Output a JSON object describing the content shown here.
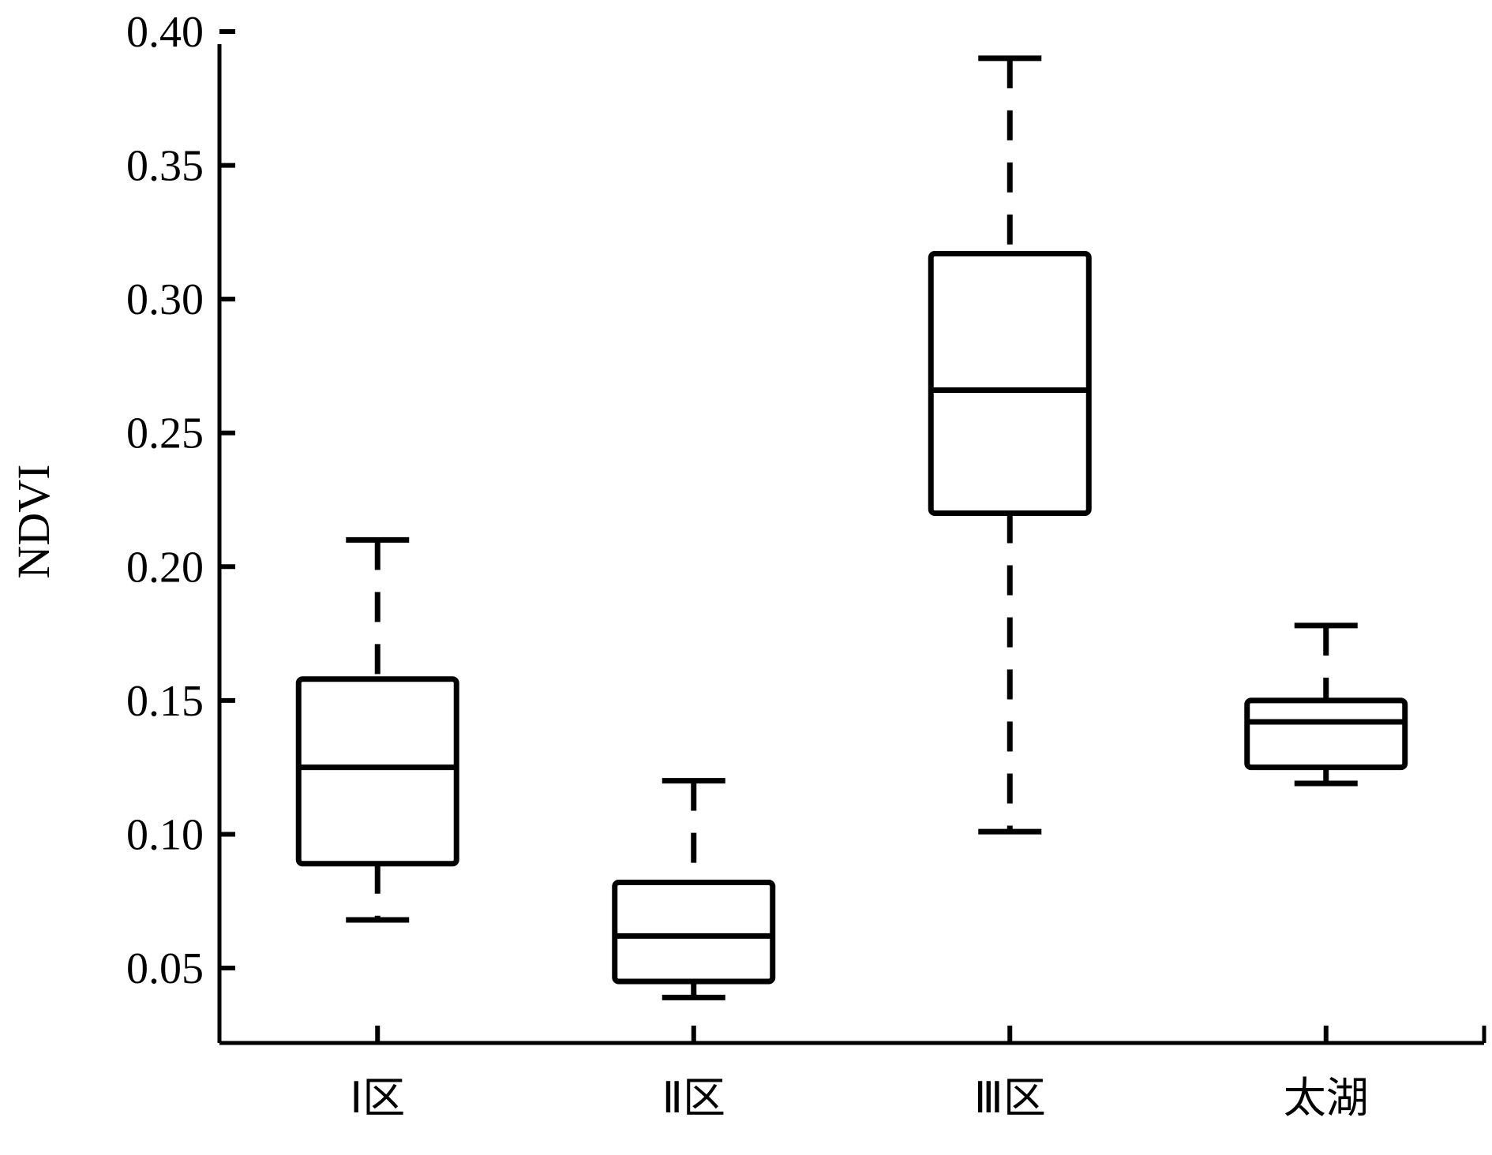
{
  "chart_data": {
    "type": "box",
    "ylabel": "NDVI",
    "xlabel": "",
    "ylim": [
      0.022,
      0.4
    ],
    "yticks": [
      "0.05",
      "0.10",
      "0.15",
      "0.20",
      "0.25",
      "0.30",
      "0.35",
      "0.40"
    ],
    "grid": false,
    "categories": [
      "Ⅰ区",
      "Ⅱ区",
      "Ⅲ区",
      "太湖"
    ],
    "boxes": [
      {
        "category": "Ⅰ区",
        "whisker_low": 0.068,
        "q1": 0.089,
        "median": 0.125,
        "q3": 0.158,
        "whisker_high": 0.21
      },
      {
        "category": "Ⅱ区",
        "whisker_low": 0.039,
        "q1": 0.045,
        "median": 0.062,
        "q3": 0.082,
        "whisker_high": 0.12
      },
      {
        "category": "Ⅲ区",
        "whisker_low": 0.101,
        "q1": 0.22,
        "median": 0.266,
        "q3": 0.317,
        "whisker_high": 0.39
      },
      {
        "category": "太湖",
        "whisker_low": 0.119,
        "q1": 0.125,
        "median": 0.142,
        "q3": 0.15,
        "whisker_high": 0.178
      }
    ]
  }
}
